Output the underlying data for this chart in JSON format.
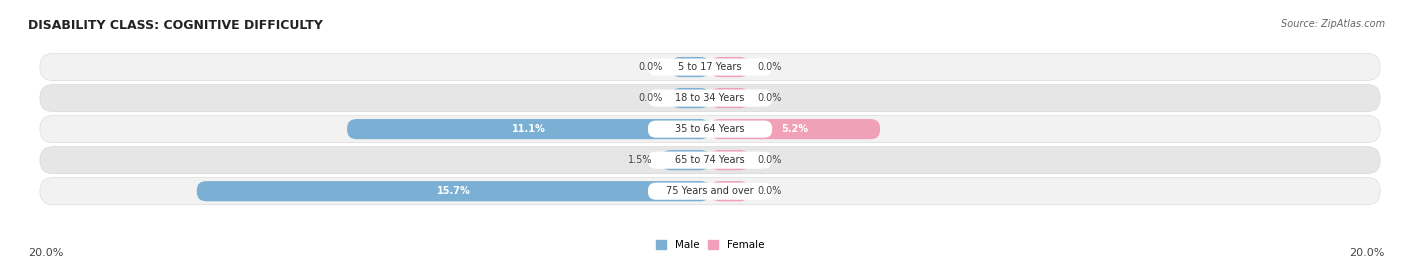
{
  "title": "DISABILITY CLASS: COGNITIVE DIFFICULTY",
  "source": "Source: ZipAtlas.com",
  "categories": [
    "5 to 17 Years",
    "18 to 34 Years",
    "35 to 64 Years",
    "65 to 74 Years",
    "75 Years and over"
  ],
  "male_values": [
    0.0,
    0.0,
    11.1,
    1.5,
    15.7
  ],
  "female_values": [
    0.0,
    0.0,
    5.2,
    0.0,
    0.0
  ],
  "male_color": "#7bafd4",
  "female_color": "#f0a0b8",
  "row_bg_light": "#f2f2f2",
  "row_bg_dark": "#e6e6e6",
  "max_val": 20.0,
  "axis_label_left": "20.0%",
  "axis_label_right": "20.0%",
  "male_label": "Male",
  "female_label": "Female",
  "min_bar_val": 1.2,
  "title_fontsize": 9,
  "source_fontsize": 7,
  "bar_label_fontsize": 7,
  "category_fontsize": 7,
  "axis_fontsize": 8
}
